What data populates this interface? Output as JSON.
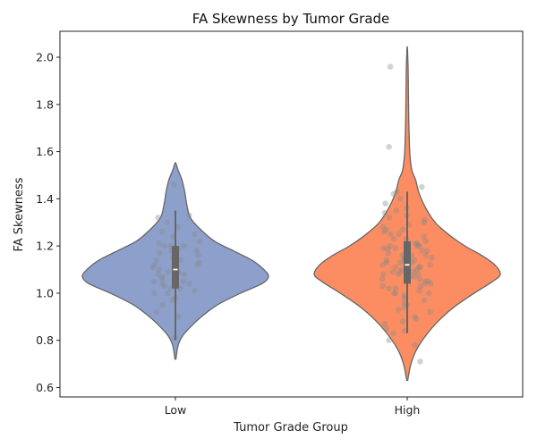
{
  "chart_data": {
    "type": "violin",
    "title": "FA Skewness by Tumor Grade",
    "xlabel": "Tumor Grade Group",
    "ylabel": "FA Skewness",
    "ylim": [
      0.56,
      2.11
    ],
    "yticks": [
      "0.6",
      "0.8",
      "1.0",
      "1.2",
      "1.4",
      "1.6",
      "1.8",
      "2.0"
    ],
    "categories": [
      "Low",
      "High"
    ],
    "grid": false,
    "colors": {
      "Low": "#8da0cb",
      "High": "#fc8d62",
      "outline": "#666666",
      "points": "#8a8a8a",
      "box": "#666666",
      "median": "#ffffff"
    },
    "groups": [
      {
        "name": "Low",
        "min": 0.72,
        "max": 1.55,
        "whisker_low": 0.8,
        "whisker_high": 1.35,
        "q1": 1.02,
        "median": 1.1,
        "q3": 1.2,
        "density": [
          [
            0.72,
            0.005
          ],
          [
            0.78,
            0.03
          ],
          [
            0.82,
            0.08
          ],
          [
            0.86,
            0.17
          ],
          [
            0.9,
            0.28
          ],
          [
            0.95,
            0.45
          ],
          [
            1.0,
            0.7
          ],
          [
            1.04,
            0.93
          ],
          [
            1.07,
            1.0
          ],
          [
            1.1,
            0.95
          ],
          [
            1.14,
            0.82
          ],
          [
            1.18,
            0.62
          ],
          [
            1.22,
            0.42
          ],
          [
            1.27,
            0.27
          ],
          [
            1.32,
            0.16
          ],
          [
            1.38,
            0.12
          ],
          [
            1.43,
            0.1
          ],
          [
            1.48,
            0.07
          ],
          [
            1.52,
            0.03
          ],
          [
            1.55,
            0.005
          ]
        ],
        "points": [
          0.81,
          0.9,
          0.92,
          0.95,
          0.97,
          0.98,
          1.0,
          1.01,
          1.02,
          1.02,
          1.03,
          1.04,
          1.05,
          1.05,
          1.06,
          1.07,
          1.08,
          1.08,
          1.09,
          1.1,
          1.1,
          1.11,
          1.12,
          1.13,
          1.14,
          1.15,
          1.16,
          1.17,
          1.18,
          1.19,
          1.2,
          1.2,
          1.21,
          1.22,
          1.24,
          1.26,
          1.28,
          1.3,
          1.32,
          1.33,
          1.0,
          1.09,
          1.12,
          1.18,
          1.04,
          1.25,
          1.46,
          1.06,
          1.14,
          1.2
        ]
      },
      {
        "name": "High",
        "min": 0.63,
        "max": 2.04,
        "whisker_low": 0.83,
        "whisker_high": 1.43,
        "q1": 1.04,
        "median": 1.12,
        "q3": 1.22,
        "density": [
          [
            0.63,
            0.005
          ],
          [
            0.7,
            0.04
          ],
          [
            0.76,
            0.1
          ],
          [
            0.82,
            0.2
          ],
          [
            0.88,
            0.33
          ],
          [
            0.94,
            0.5
          ],
          [
            1.0,
            0.72
          ],
          [
            1.05,
            0.92
          ],
          [
            1.08,
            1.0
          ],
          [
            1.12,
            0.94
          ],
          [
            1.16,
            0.8
          ],
          [
            1.2,
            0.62
          ],
          [
            1.25,
            0.44
          ],
          [
            1.3,
            0.3
          ],
          [
            1.36,
            0.2
          ],
          [
            1.42,
            0.13
          ],
          [
            1.48,
            0.09
          ],
          [
            1.52,
            0.05
          ],
          [
            1.58,
            0.03
          ],
          [
            1.65,
            0.022
          ],
          [
            1.75,
            0.016
          ],
          [
            1.85,
            0.013
          ],
          [
            1.95,
            0.01
          ],
          [
            2.0,
            0.006
          ],
          [
            2.04,
            0.002
          ]
        ],
        "points": [
          0.71,
          0.78,
          0.8,
          0.83,
          0.84,
          0.85,
          0.87,
          0.88,
          0.89,
          0.9,
          0.92,
          0.93,
          0.94,
          0.95,
          0.96,
          0.97,
          0.98,
          0.99,
          1.0,
          1.0,
          1.01,
          1.02,
          1.02,
          1.03,
          1.04,
          1.04,
          1.05,
          1.05,
          1.06,
          1.07,
          1.07,
          1.08,
          1.08,
          1.09,
          1.09,
          1.1,
          1.1,
          1.11,
          1.11,
          1.12,
          1.12,
          1.13,
          1.13,
          1.14,
          1.14,
          1.15,
          1.15,
          1.16,
          1.16,
          1.17,
          1.17,
          1.18,
          1.18,
          1.19,
          1.19,
          1.2,
          1.2,
          1.21,
          1.21,
          1.22,
          1.23,
          1.24,
          1.25,
          1.26,
          1.27,
          1.28,
          1.29,
          1.3,
          1.31,
          1.32,
          1.33,
          1.34,
          1.35,
          1.36,
          1.38,
          1.4,
          1.42,
          1.43,
          1.45,
          1.62,
          1.96,
          1.06,
          1.09,
          1.13,
          1.16,
          1.19,
          1.23,
          1.27,
          1.03,
          1.11,
          1.15,
          1.2,
          1.25,
          1.0,
          1.08,
          1.14
        ]
      }
    ]
  }
}
